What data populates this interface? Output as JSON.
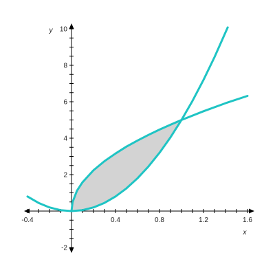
{
  "chart_data": {
    "type": "line",
    "xlabel": "x",
    "ylabel": "y",
    "xlim": [
      -0.4,
      1.6
    ],
    "ylim": [
      -2,
      10
    ],
    "x_ticks": [
      {
        "value": -0.4,
        "label": "-0.4"
      },
      {
        "value": 0.4,
        "label": "0.4"
      },
      {
        "value": 0.8,
        "label": "0.8"
      },
      {
        "value": 1.2,
        "label": "1.2"
      },
      {
        "value": 1.6,
        "label": "1.6"
      }
    ],
    "y_ticks": [
      {
        "value": -2,
        "label": "-2"
      },
      {
        "value": 2,
        "label": "2"
      },
      {
        "value": 4,
        "label": "4"
      },
      {
        "value": 6,
        "label": "6"
      },
      {
        "value": 8,
        "label": "8"
      },
      {
        "value": 10,
        "label": "10"
      }
    ],
    "series": [
      {
        "color": "#1fc4c4",
        "x": [
          -0.4,
          -0.3,
          -0.2,
          -0.1,
          0,
          0.1,
          0.2,
          0.3,
          0.4,
          0.5,
          0.6,
          0.7,
          0.8,
          0.9,
          1.0,
          1.1,
          1.2,
          1.3,
          1.42
        ],
        "y": [
          0.8,
          0.45,
          0.2,
          0.05,
          0,
          0.05,
          0.2,
          0.45,
          0.8,
          1.25,
          1.8,
          2.45,
          3.2,
          4.05,
          5.0,
          6.05,
          7.2,
          8.45,
          10.08
        ]
      },
      {
        "color": "#1fc4c4",
        "x": [
          0,
          0.01,
          0.05,
          0.1,
          0.2,
          0.3,
          0.4,
          0.5,
          0.6,
          0.7,
          0.8,
          0.9,
          1.0,
          1.2,
          1.4,
          1.6
        ],
        "y": [
          0,
          0.5,
          1.12,
          1.58,
          2.24,
          2.74,
          3.16,
          3.54,
          3.87,
          4.18,
          4.47,
          4.74,
          5.0,
          5.48,
          5.92,
          6.32
        ]
      }
    ],
    "shaded_region": {
      "color": "#d3d3d3",
      "x_from": 0,
      "x_to": 1
    }
  }
}
